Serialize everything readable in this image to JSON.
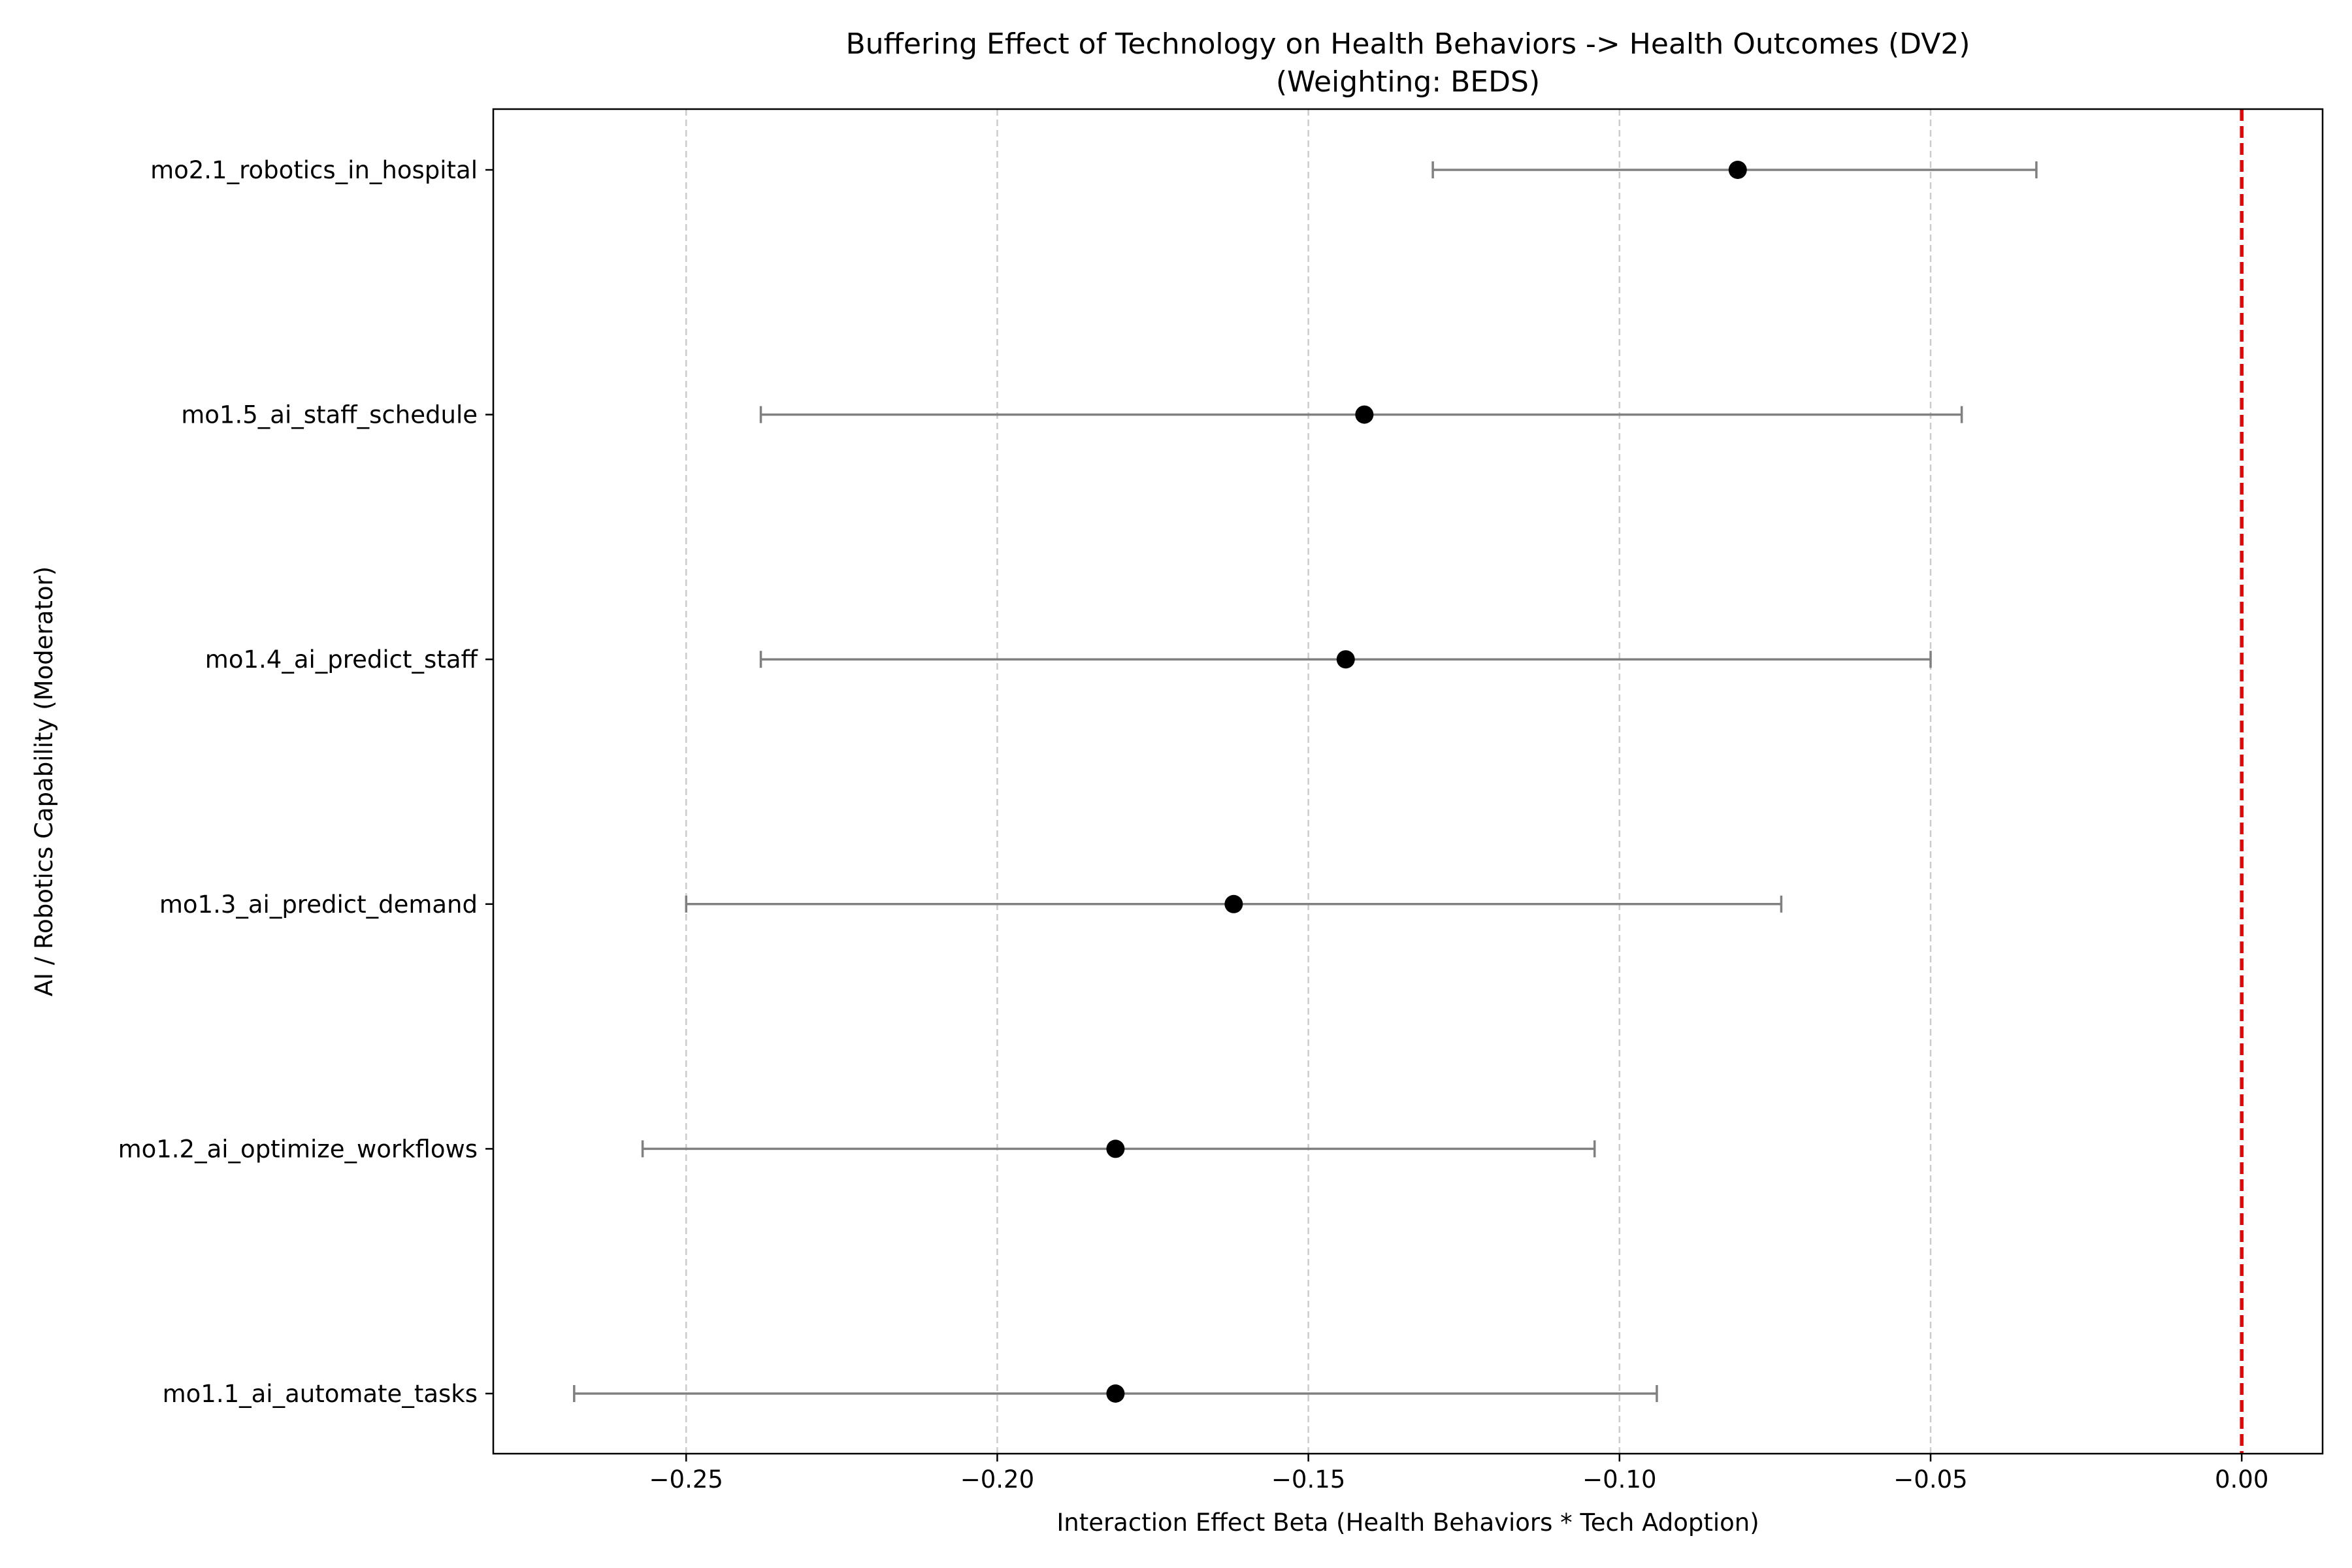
{
  "chart_data": {
    "type": "scatter",
    "title": "Buffering Effect of Technology on Health Behaviors -> Health Outcomes (DV2)",
    "subtitle": "(Weighting: BEDS)",
    "xlabel": "Interaction Effect Beta (Health Behaviors * Tech Adoption)",
    "ylabel": "AI / Robotics Capability (Moderator)",
    "xlim": [
      -0.281,
      0.013
    ],
    "x_ticks": [
      -0.25,
      -0.2,
      -0.15,
      -0.1,
      -0.05,
      0.0
    ],
    "x_tick_labels": [
      "−0.25",
      "−0.20",
      "−0.15",
      "−0.10",
      "−0.05",
      "0.00"
    ],
    "grid": "vertical dashed",
    "reference_line": {
      "x": 0.0,
      "style": "dashed",
      "color": "#ee0000"
    },
    "point_color": "#000000",
    "errorbar_color": "#808080",
    "categories": [
      "mo2.1_robotics_in_hospital",
      "mo1.5_ai_staff_schedule",
      "mo1.4_ai_predict_staff",
      "mo1.3_ai_predict_demand",
      "mo1.2_ai_optimize_workflows",
      "mo1.1_ai_automate_tasks"
    ],
    "values": [
      -0.081,
      -0.141,
      -0.144,
      -0.162,
      -0.181,
      -0.181
    ],
    "ci_lower": [
      -0.13,
      -0.238,
      -0.238,
      -0.25,
      -0.257,
      -0.268
    ],
    "ci_upper": [
      -0.033,
      -0.045,
      -0.05,
      -0.074,
      -0.104,
      -0.094
    ]
  }
}
